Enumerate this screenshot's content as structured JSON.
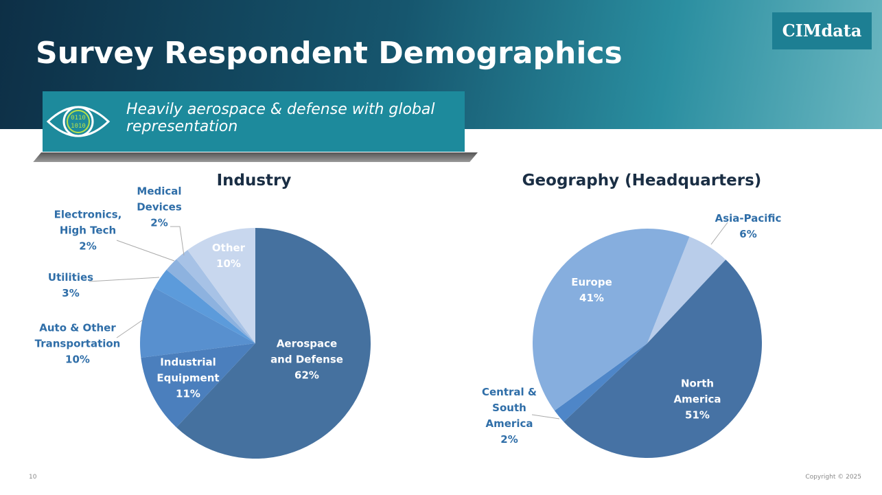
{
  "header": {
    "title": "Survey Respondent Demographics",
    "subtitle": "Heavily aerospace & defense with global representation",
    "logo": "CIMdata",
    "icon_text": [
      "0110",
      "1010"
    ]
  },
  "chart_data": [
    {
      "type": "pie",
      "title": "Industry",
      "categories": [
        "Aerospace and Defense",
        "Industrial Equipment",
        "Auto & Other Transportation",
        "Utilities",
        "Electronics, High Tech",
        "Medical Devices",
        "Other"
      ],
      "values": [
        62,
        11,
        10,
        3,
        2,
        2,
        10
      ],
      "value_labels": [
        "62%",
        "11%",
        "10%",
        "3%",
        "2%",
        "2%",
        "10%"
      ],
      "colors": [
        "#45719f",
        "#4b7fbd",
        "#5890cf",
        "#5c9bdb",
        "#8db2df",
        "#a7c2e6",
        "#c8d7ee"
      ]
    },
    {
      "type": "pie",
      "title": "Geography (Headquarters)",
      "categories": [
        "Asia-Pacific",
        "North America",
        "Central & South America",
        "Europe"
      ],
      "values": [
        6,
        51,
        2,
        41
      ],
      "value_labels": [
        "6%",
        "51%",
        "2%",
        "41%"
      ],
      "colors": [
        "#b9cdea",
        "#4672a4",
        "#4e86c8",
        "#86aede"
      ]
    }
  ],
  "footer": {
    "page": "10",
    "copyright": "Copyright © 2025"
  }
}
